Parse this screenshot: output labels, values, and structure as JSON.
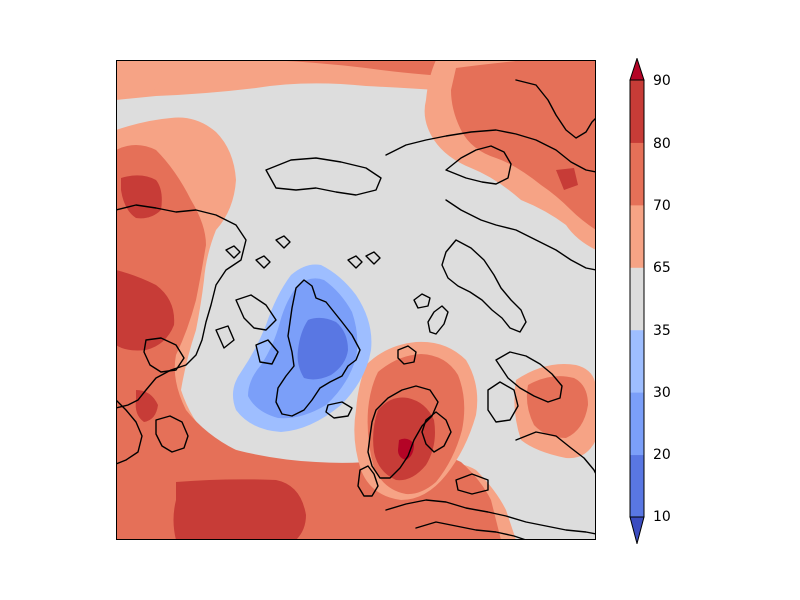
{
  "map": {
    "projection": "north-polar-stereographic",
    "field_palette": {
      "below_10": "#3b4cc0",
      "10_20": "#5977e3",
      "20_30": "#7b9ff9",
      "30_35": "#9ebeff",
      "35_65": "#dddddd",
      "65_70": "#f6a385",
      "70_80": "#e57058",
      "80_90": "#c73c37",
      "above_90": "#b40426"
    },
    "coastline_color": "#000000"
  },
  "colorbar": {
    "extend": "both",
    "levels": [
      10,
      20,
      30,
      35,
      65,
      70,
      80,
      90
    ],
    "labels": [
      "10",
      "20",
      "30",
      "35",
      "65",
      "70",
      "80",
      "90"
    ],
    "segment_colors": [
      "#5977e3",
      "#7b9ff9",
      "#9ebeff",
      "#dddddd",
      "#f6a385",
      "#e57058",
      "#c73c37"
    ],
    "under_color": "#3b4cc0",
    "over_color": "#b40426"
  }
}
